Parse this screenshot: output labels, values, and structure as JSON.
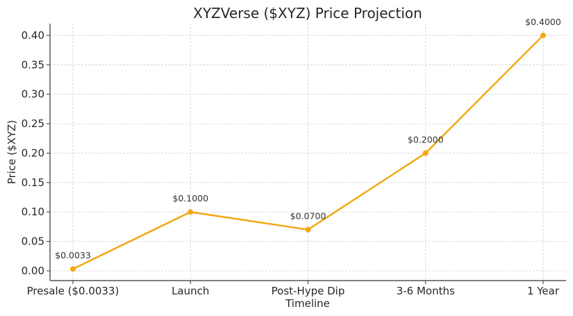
{
  "chart_data": {
    "type": "line",
    "title": "XYZVerse ($XYZ) Price Projection",
    "xlabel": "Timeline",
    "ylabel": "Price ($XYZ)",
    "categories": [
      "Presale ($0.0033)",
      "Launch",
      "Post-Hype Dip",
      "3-6 Months",
      "1 Year"
    ],
    "series": [
      {
        "values": [
          0.0033,
          0.1,
          0.07,
          0.2,
          0.4
        ]
      }
    ],
    "data_labels": [
      "$0.0033",
      "$0.1000",
      "$0.0700",
      "$0.2000",
      "$0.4000"
    ],
    "ylim": [
      -0.0165,
      0.42
    ],
    "yticks": [
      0.0,
      0.05,
      0.1,
      0.15,
      0.2,
      0.25,
      0.3,
      0.35,
      0.4
    ],
    "ytick_labels": [
      "0.00",
      "0.05",
      "0.10",
      "0.15",
      "0.20",
      "0.25",
      "0.30",
      "0.35",
      "0.40"
    ],
    "grid": true,
    "grid_style": "dashed",
    "line_color": "#f2a814",
    "grid_color": "#cccccc",
    "axis_color": "#333333",
    "text_color": "#262626"
  }
}
